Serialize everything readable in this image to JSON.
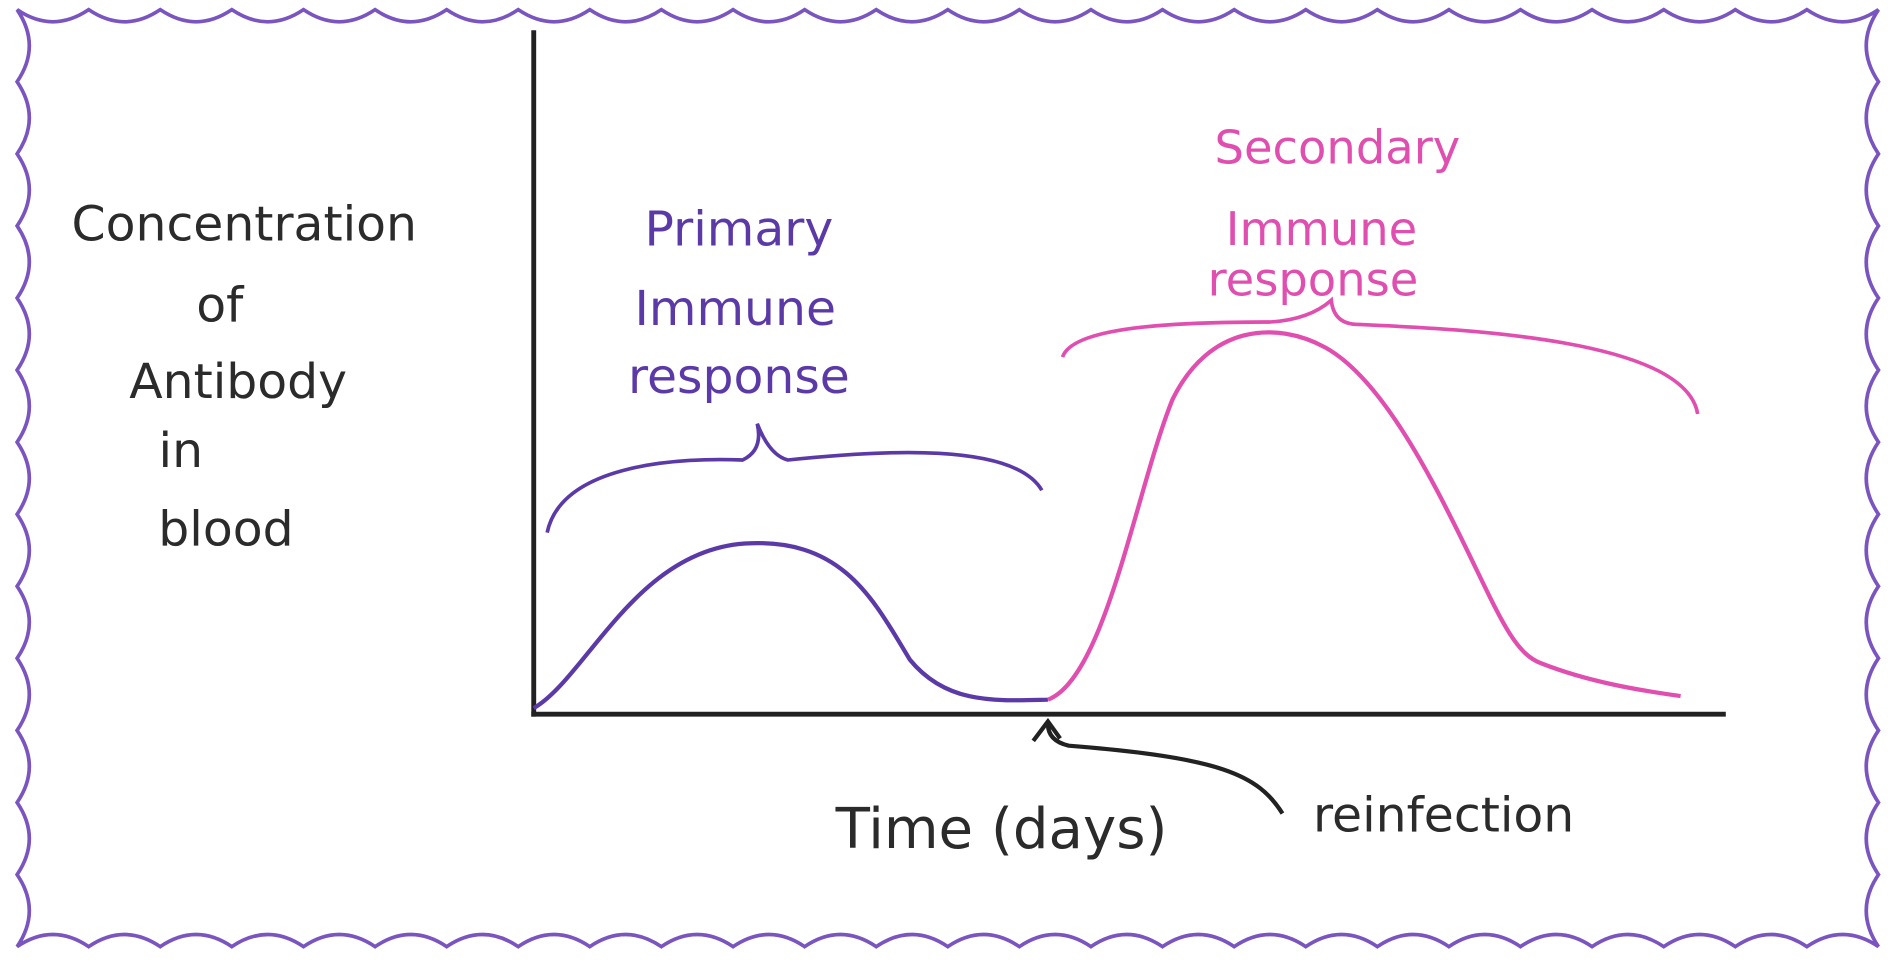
{
  "y_axis_label": [
    "Concentration",
    "of",
    "Antibody",
    "in",
    "blood"
  ],
  "primary_label": [
    "Primary",
    "Immune",
    "response"
  ],
  "secondary_label": [
    "Secondary",
    "Immune",
    "response"
  ],
  "x_axis_label": "Time (days)",
  "reinfection_label": "reinfection"
}
